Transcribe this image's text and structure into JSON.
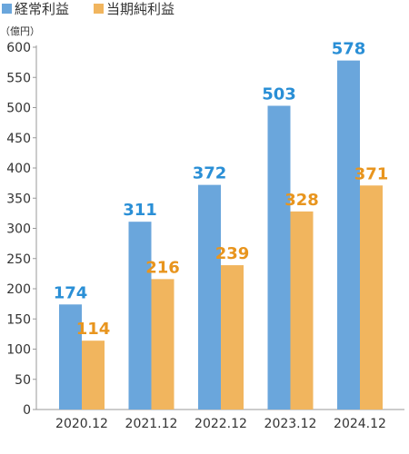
{
  "chart_data": {
    "type": "bar",
    "unit_label": "（億円）",
    "categories": [
      "2020.12",
      "2021.12",
      "2022.12",
      "2023.12",
      "2024.12"
    ],
    "series": [
      {
        "name": "経常利益",
        "color": "#6aa6dc",
        "label_color": "#2a8fd6",
        "values": [
          174,
          311,
          372,
          503,
          578
        ]
      },
      {
        "name": "当期純利益",
        "color": "#f1b55e",
        "label_color": "#e8951e",
        "values": [
          114,
          216,
          239,
          328,
          371
        ]
      }
    ],
    "ylim": [
      0,
      600
    ],
    "yticks": [
      0,
      50,
      100,
      150,
      200,
      250,
      300,
      350,
      400,
      450,
      500,
      550,
      600
    ],
    "grid": false,
    "legend": "top-left"
  }
}
